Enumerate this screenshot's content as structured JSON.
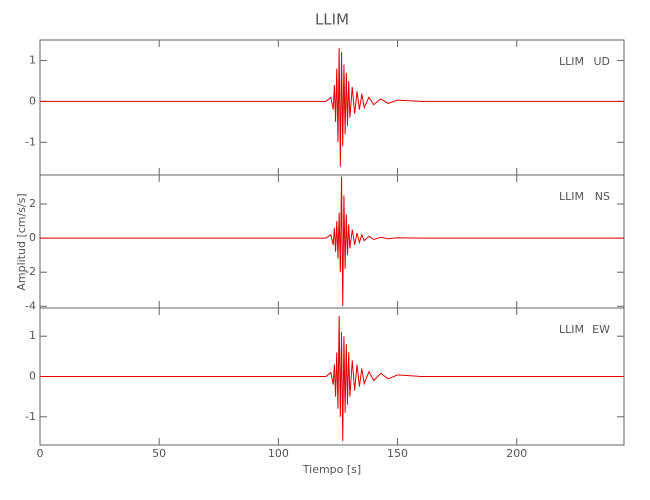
{
  "figure": {
    "title": "LLIM",
    "xlabel": "Tiempo [s]",
    "ylabel": "Amplitud [cm/s/s]"
  },
  "chart_data": [
    {
      "type": "line",
      "station": "LLIM",
      "component": "UD",
      "x": [
        0,
        60,
        120,
        122,
        123,
        123.5,
        124,
        124.5,
        125,
        125.5,
        126,
        126.5,
        127,
        127.5,
        128,
        128.5,
        129,
        129.5,
        130,
        131,
        132,
        133,
        134,
        135,
        136,
        138,
        140,
        143,
        146,
        150,
        160,
        200,
        245
      ],
      "series": [
        {
          "color": "#e00000",
          "values": [
            0,
            0,
            0,
            0.1,
            -0.2,
            0.4,
            -0.5,
            0.8,
            -1.0,
            1.3,
            -1.6,
            1.2,
            -1.1,
            0.9,
            -0.8,
            0.7,
            -0.6,
            0.5,
            -0.4,
            0.35,
            -0.3,
            0.25,
            -0.2,
            0.18,
            -0.15,
            0.1,
            -0.08,
            0.06,
            -0.05,
            0.03,
            0,
            0,
            0
          ]
        }
      ],
      "xlim": [
        0,
        245
      ],
      "xticks": [
        0,
        50,
        100,
        150,
        200
      ],
      "ylim": [
        -1.8,
        1.5
      ],
      "yticks": [
        -1,
        0,
        1
      ]
    },
    {
      "type": "line",
      "station": "LLIM",
      "component": "NS",
      "x": [
        0,
        60,
        120,
        122,
        123,
        123.5,
        124,
        124.5,
        125,
        125.5,
        126,
        126.5,
        127,
        127.5,
        128,
        128.5,
        129,
        129.5,
        130,
        131,
        132,
        133,
        134,
        135,
        136,
        138,
        140,
        143,
        146,
        150,
        160,
        200,
        245
      ],
      "series": [
        {
          "color": "#e00000",
          "values": [
            0,
            0,
            0,
            0.2,
            -0.4,
            0.6,
            -0.8,
            1.0,
            -1.2,
            1.5,
            -2.0,
            3.6,
            -4.0,
            2.5,
            -1.8,
            1.4,
            -1.0,
            0.8,
            -0.6,
            0.5,
            -0.4,
            0.3,
            -0.25,
            0.2,
            -0.15,
            0.1,
            -0.08,
            0.05,
            -0.04,
            0.02,
            0,
            0,
            0
          ]
        }
      ],
      "xlim": [
        0,
        245
      ],
      "xticks": [
        0,
        50,
        100,
        150,
        200
      ],
      "ylim": [
        -4.1,
        3.7
      ],
      "yticks": [
        -4,
        -2,
        0,
        2
      ]
    },
    {
      "type": "line",
      "station": "LLIM",
      "component": "EW",
      "x": [
        0,
        60,
        120,
        122,
        123,
        123.5,
        124,
        124.5,
        125,
        125.5,
        126,
        126.5,
        127,
        127.5,
        128,
        128.5,
        129,
        129.5,
        130,
        131,
        132,
        133,
        134,
        135,
        136,
        138,
        140,
        143,
        146,
        150,
        160,
        200,
        245
      ],
      "series": [
        {
          "color": "#e00000",
          "values": [
            0,
            0,
            0,
            0.1,
            -0.2,
            0.3,
            -0.5,
            0.6,
            -0.8,
            1.5,
            -1.0,
            1.1,
            -1.6,
            1.0,
            -0.9,
            0.8,
            -0.7,
            0.6,
            -0.5,
            0.4,
            -0.35,
            0.3,
            -0.25,
            0.2,
            -0.18,
            0.12,
            -0.1,
            0.08,
            -0.06,
            0.04,
            0,
            0,
            0
          ]
        }
      ],
      "xlim": [
        0,
        245
      ],
      "xticks": [
        0,
        50,
        100,
        150,
        200
      ],
      "ylim": [
        -1.7,
        1.7
      ],
      "yticks": [
        -1,
        0,
        1
      ]
    }
  ]
}
